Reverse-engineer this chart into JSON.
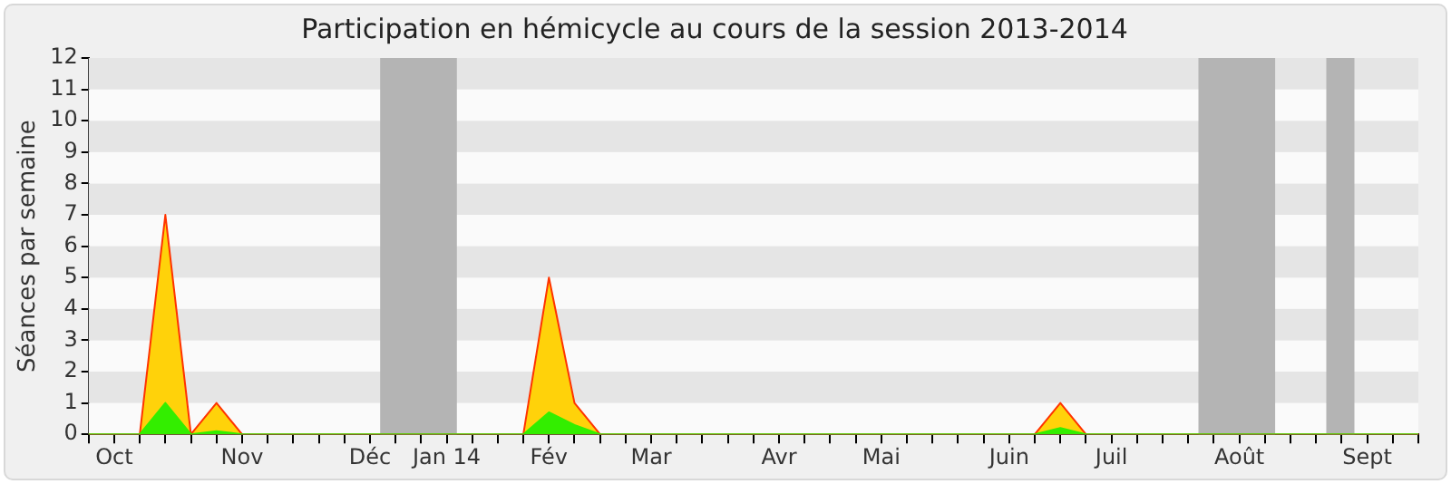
{
  "chart_data": {
    "type": "area",
    "title": "Participation en hémicycle au cours de la session 2013-2014",
    "ylabel": "Séances par semaine",
    "categories": [
      null,
      "Oct",
      null,
      null,
      null,
      null,
      "Nov",
      null,
      null,
      null,
      null,
      "Déc",
      null,
      null,
      "Jan 14",
      null,
      null,
      null,
      "Fév",
      null,
      null,
      null,
      "Mar",
      null,
      null,
      null,
      null,
      "Avr",
      null,
      null,
      null,
      "Mai",
      null,
      null,
      null,
      null,
      "Juin",
      null,
      null,
      null,
      "Juil",
      null,
      null,
      null,
      null,
      "Août",
      null,
      null,
      null,
      null,
      "Sept",
      null,
      null
    ],
    "series": [
      {
        "color": "#ffd20a",
        "values": [
          0,
          0,
          0,
          7,
          0,
          1,
          0,
          0,
          0,
          0,
          0,
          0,
          0,
          0,
          0,
          0,
          0,
          0,
          5,
          1,
          0,
          0,
          0,
          0,
          0,
          0,
          0,
          0,
          0,
          0,
          0,
          0,
          0,
          0,
          0,
          0,
          0,
          0,
          1,
          0,
          0,
          0,
          0,
          0,
          0,
          0,
          0,
          0,
          0,
          0,
          0,
          0,
          0
        ]
      },
      {
        "color": "#33ee00",
        "values": [
          0,
          0,
          0,
          1,
          0,
          0.1,
          0,
          0,
          0,
          0,
          0,
          0,
          0,
          0,
          0,
          0,
          0,
          0,
          0.7,
          0.3,
          0,
          0,
          0,
          0,
          0,
          0,
          0,
          0,
          0,
          0,
          0,
          0,
          0,
          0,
          0,
          0,
          0,
          0,
          0.2,
          0,
          0,
          0,
          0,
          0,
          0,
          0,
          0,
          0,
          0,
          0,
          0,
          0,
          0
        ]
      }
    ],
    "ylim": [
      0,
      12
    ],
    "yticks": [
      0,
      1,
      2,
      3,
      4,
      5,
      6,
      7,
      8,
      9,
      10,
      11,
      12
    ],
    "legend": false
  }
}
